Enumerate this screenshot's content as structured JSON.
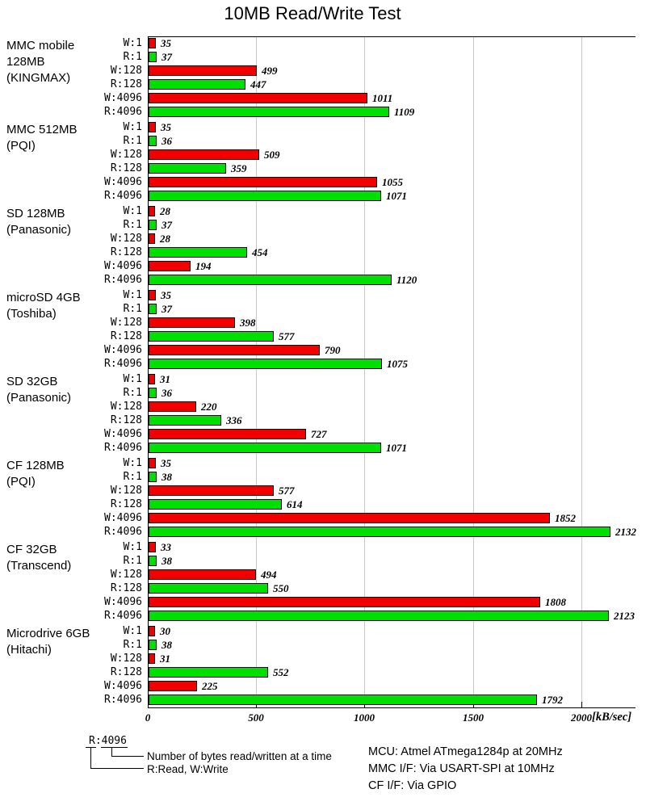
{
  "chart_data": {
    "type": "bar",
    "orientation": "horizontal",
    "title": "10MB Read/Write Test",
    "unit_label": "[kB/sec]",
    "xlim": [
      0,
      2250
    ],
    "xticks": [
      0,
      500,
      1000,
      1500,
      2000
    ],
    "grid": "vertical",
    "bar_labels": [
      "W:1",
      "R:1",
      "W:128",
      "R:128",
      "W:4096",
      "R:4096"
    ],
    "colors": {
      "write": "#f20000",
      "read": "#00e000"
    },
    "groups": [
      {
        "name_lines": [
          "MMC mobile",
          "128MB",
          "(KINGMAX)"
        ],
        "values": [
          35,
          37,
          499,
          447,
          1011,
          1109
        ]
      },
      {
        "name_lines": [
          "MMC 512MB",
          "(PQI)"
        ],
        "values": [
          35,
          36,
          509,
          359,
          1055,
          1071
        ]
      },
      {
        "name_lines": [
          "SD 128MB",
          "(Panasonic)"
        ],
        "values": [
          28,
          37,
          28,
          454,
          194,
          1120
        ]
      },
      {
        "name_lines": [
          "microSD 4GB",
          "(Toshiba)"
        ],
        "values": [
          35,
          37,
          398,
          577,
          790,
          1075
        ]
      },
      {
        "name_lines": [
          "SD 32GB",
          "(Panasonic)"
        ],
        "values": [
          31,
          36,
          220,
          336,
          727,
          1071
        ]
      },
      {
        "name_lines": [
          "CF 128MB",
          "(PQI)"
        ],
        "values": [
          35,
          38,
          577,
          614,
          1852,
          2132
        ]
      },
      {
        "name_lines": [
          "CF 32GB",
          "(Transcend)"
        ],
        "values": [
          33,
          38,
          494,
          550,
          1808,
          2123
        ]
      },
      {
        "name_lines": [
          "Microdrive 6GB",
          "(Hitachi)"
        ],
        "values": [
          30,
          38,
          31,
          552,
          225,
          1792
        ]
      }
    ]
  },
  "footer": {
    "legend_sample": "R:4096",
    "legend_note_bytes": "Number of bytes read/written at a time",
    "legend_note_rw": "R:Read, W:Write",
    "info_lines": [
      "MCU: Atmel ATmega1284p at 20MHz",
      "MMC I/F: Via USART-SPI at 10MHz",
      "CF I/F: Via GPIO"
    ]
  }
}
